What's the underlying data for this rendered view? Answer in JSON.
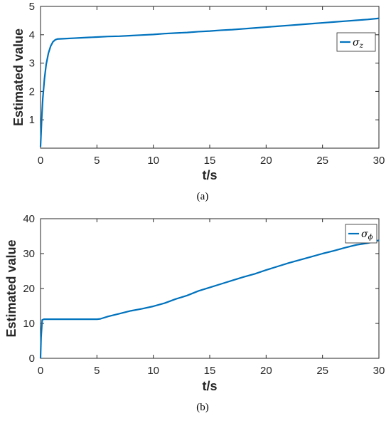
{
  "chart_data": [
    {
      "type": "line",
      "caption": "(a)",
      "xlabel": "t/s",
      "ylabel": "Estimated value",
      "xlim": [
        0,
        30
      ],
      "ylim": [
        0,
        5
      ],
      "xticks": [
        "0",
        "5",
        "10",
        "15",
        "20",
        "25",
        "30"
      ],
      "yticks": [
        "1",
        "2",
        "3",
        "4",
        "5"
      ],
      "legend_position": "top-right",
      "series": [
        {
          "name": "σz",
          "name_base": "σ",
          "name_sub": "z",
          "color": "#0072BD",
          "x": [
            0,
            0.1,
            0.2,
            0.35,
            0.5,
            0.7,
            0.9,
            1.1,
            1.3,
            1.5,
            2,
            3,
            4,
            5,
            6,
            7,
            8,
            9,
            10,
            11,
            12,
            13,
            14,
            15,
            16,
            17,
            18,
            19,
            20,
            21,
            22,
            23,
            24,
            25,
            26,
            27,
            28,
            29,
            30
          ],
          "y": [
            0.05,
            1.0,
            1.75,
            2.45,
            2.95,
            3.35,
            3.6,
            3.75,
            3.82,
            3.85,
            3.86,
            3.88,
            3.9,
            3.92,
            3.94,
            3.95,
            3.97,
            3.99,
            4.01,
            4.04,
            4.06,
            4.08,
            4.11,
            4.13,
            4.16,
            4.18,
            4.21,
            4.24,
            4.27,
            4.3,
            4.33,
            4.36,
            4.39,
            4.42,
            4.45,
            4.48,
            4.51,
            4.54,
            4.58
          ]
        }
      ]
    },
    {
      "type": "line",
      "caption": "(b)",
      "xlabel": "t/s",
      "ylabel": "Estimated value",
      "xlim": [
        0,
        30
      ],
      "ylim": [
        0,
        40
      ],
      "xticks": [
        "0",
        "5",
        "10",
        "15",
        "20",
        "25",
        "30"
      ],
      "yticks": [
        "0",
        "10",
        "20",
        "30",
        "40"
      ],
      "legend_position": "top-right",
      "series": [
        {
          "name": "σϕ",
          "name_base": "σ",
          "name_sub": "ϕ",
          "color": "#0072BD",
          "x": [
            0,
            0.05,
            0.15,
            0.3,
            1,
            2,
            3,
            4,
            5,
            5.3,
            6,
            7,
            8,
            9,
            10,
            11,
            12,
            13,
            14,
            15,
            16,
            17,
            18,
            19,
            20,
            21,
            22,
            23,
            24,
            25,
            26,
            27,
            28,
            29,
            30
          ],
          "y": [
            0,
            6,
            11,
            11.2,
            11.2,
            11.2,
            11.2,
            11.2,
            11.2,
            11.3,
            12.0,
            12.8,
            13.6,
            14.2,
            14.9,
            15.8,
            17.0,
            18.0,
            19.3,
            20.3,
            21.3,
            22.3,
            23.3,
            24.2,
            25.3,
            26.3,
            27.3,
            28.2,
            29.1,
            30.0,
            30.8,
            31.7,
            32.5,
            33.0,
            33.8
          ]
        }
      ]
    }
  ]
}
